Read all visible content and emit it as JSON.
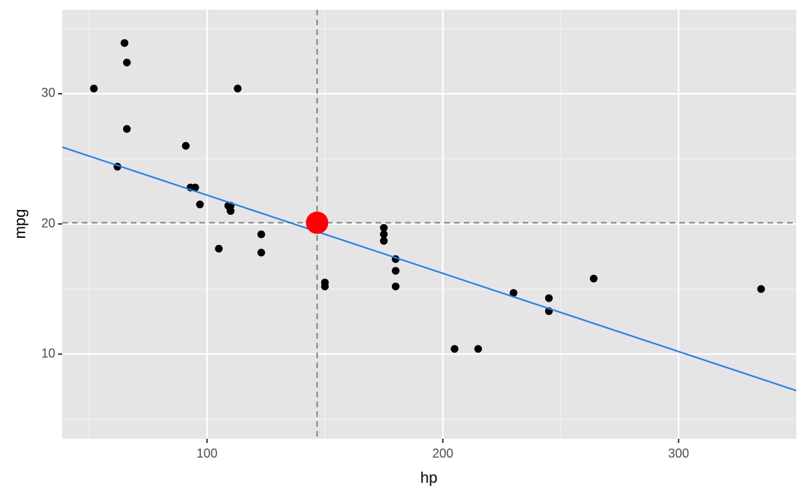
{
  "chart_data": {
    "type": "scatter",
    "x_label": "hp",
    "y_label": "mpg",
    "x": [
      110,
      110,
      93,
      110,
      175,
      105,
      245,
      62,
      95,
      123,
      123,
      180,
      180,
      180,
      205,
      215,
      230,
      66,
      52,
      65,
      97,
      150,
      150,
      245,
      175,
      66,
      91,
      113,
      264,
      175,
      335,
      109
    ],
    "values": [
      21,
      21,
      22.8,
      21.4,
      18.7,
      18.1,
      14.3,
      24.4,
      22.8,
      19.2,
      17.8,
      16.4,
      17.3,
      15.2,
      10.4,
      10.4,
      14.7,
      32.4,
      30.4,
      33.9,
      21.5,
      15.5,
      15.2,
      13.3,
      19.2,
      27.3,
      26,
      30.4,
      15.8,
      19.7,
      15,
      21.4
    ],
    "color": "#000000",
    "fit_line": {
      "x": [
        38.6,
        349.9
      ],
      "values": [
        25.9,
        7.2
      ],
      "color": "#2a7bf0"
    },
    "highlight": {
      "x": 146.69,
      "value": 20.09,
      "color": "#ff0000"
    },
    "xlim": [
      38.6,
      349.9
    ],
    "ylim": [
      3.5,
      36.45
    ],
    "xticks": [
      100,
      200,
      300
    ],
    "yticks": [
      10,
      20,
      30
    ],
    "xminor": [
      50,
      150,
      250
    ],
    "yminor": [
      5,
      15,
      25,
      35
    ],
    "grid": true
  }
}
